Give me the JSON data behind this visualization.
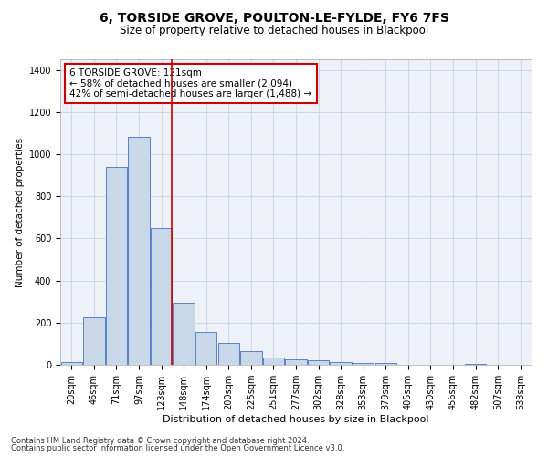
{
  "title": "6, TORSIDE GROVE, POULTON-LE-FYLDE, FY6 7FS",
  "subtitle": "Size of property relative to detached houses in Blackpool",
  "xlabel": "Distribution of detached houses by size in Blackpool",
  "ylabel": "Number of detached properties",
  "bar_labels": [
    "20sqm",
    "46sqm",
    "71sqm",
    "97sqm",
    "123sqm",
    "148sqm",
    "174sqm",
    "200sqm",
    "225sqm",
    "251sqm",
    "277sqm",
    "302sqm",
    "328sqm",
    "353sqm",
    "379sqm",
    "405sqm",
    "430sqm",
    "456sqm",
    "482sqm",
    "507sqm",
    "533sqm"
  ],
  "bar_values": [
    15,
    225,
    940,
    1080,
    650,
    295,
    155,
    105,
    65,
    35,
    25,
    20,
    15,
    10,
    10,
    0,
    0,
    0,
    5,
    0,
    0
  ],
  "bar_color": "#c8d8e8",
  "bar_edge_color": "#4472c4",
  "vline_color": "#cc0000",
  "vline_bin_index": 4,
  "annotation_text": "6 TORSIDE GROVE: 121sqm\n← 58% of detached houses are smaller (2,094)\n42% of semi-detached houses are larger (1,488) →",
  "annotation_box_color": "#ffffff",
  "annotation_box_edge": "#cc0000",
  "ylim": [
    0,
    1450
  ],
  "yticks": [
    0,
    200,
    400,
    600,
    800,
    1000,
    1200,
    1400
  ],
  "footer_line1": "Contains HM Land Registry data © Crown copyright and database right 2024.",
  "footer_line2": "Contains public sector information licensed under the Open Government Licence v3.0.",
  "title_fontsize": 10,
  "subtitle_fontsize": 8.5,
  "xlabel_fontsize": 8,
  "ylabel_fontsize": 7.5,
  "tick_fontsize": 7,
  "footer_fontsize": 6,
  "annotation_fontsize": 7.5,
  "grid_color": "#d0d8e8",
  "bg_color": "#eef2f8"
}
